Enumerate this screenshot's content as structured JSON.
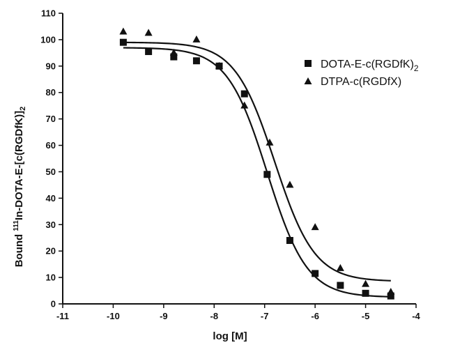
{
  "chart_data": {
    "type": "scatter",
    "title": "",
    "xlabel": "log [M]",
    "ylabel_parts": {
      "prefix": "Bound ",
      "superscript": "111",
      "main": "In-DOTA-E-[c(RGDfK)]",
      "subscript": "2"
    },
    "xlim": [
      -11,
      -4
    ],
    "ylim": [
      0,
      110
    ],
    "x_ticks": [
      -11,
      -10,
      -9,
      -8,
      -7,
      -6,
      -5,
      -4
    ],
    "y_ticks": [
      0,
      10,
      20,
      30,
      40,
      50,
      60,
      70,
      80,
      90,
      100,
      110
    ],
    "grid": false,
    "legend_position": "top-right",
    "series": [
      {
        "name_main": "DOTA-E-c(RGDfK)",
        "name_sub": "2",
        "marker": "square",
        "x": [
          -9.8,
          -9.3,
          -8.8,
          -8.35,
          -7.9,
          -7.4,
          -6.95,
          -6.5,
          -6.0,
          -5.5,
          -5.0,
          -4.5
        ],
        "y": [
          99,
          95.5,
          93.5,
          92,
          90,
          79.5,
          49,
          24,
          11.5,
          7,
          4,
          3
        ],
        "fit": {
          "top": 97,
          "bottom": 2.5,
          "log_ec50": -6.95,
          "hill_slope": 1.1
        }
      },
      {
        "name_main": "DTPA-c(RGDfX)",
        "name_sub": "",
        "marker": "triangle",
        "x": [
          -9.8,
          -9.3,
          -8.8,
          -8.35,
          -7.9,
          -7.4,
          -6.9,
          -6.5,
          -6.0,
          -5.5,
          -5.0,
          -4.5
        ],
        "y": [
          103,
          102.5,
          95,
          100,
          90,
          75,
          61,
          45,
          29,
          13.5,
          7.5,
          4.5
        ],
        "fit": {
          "top": 99,
          "bottom": 8.5,
          "log_ec50": -6.8,
          "hill_slope": 1.1
        }
      }
    ]
  }
}
